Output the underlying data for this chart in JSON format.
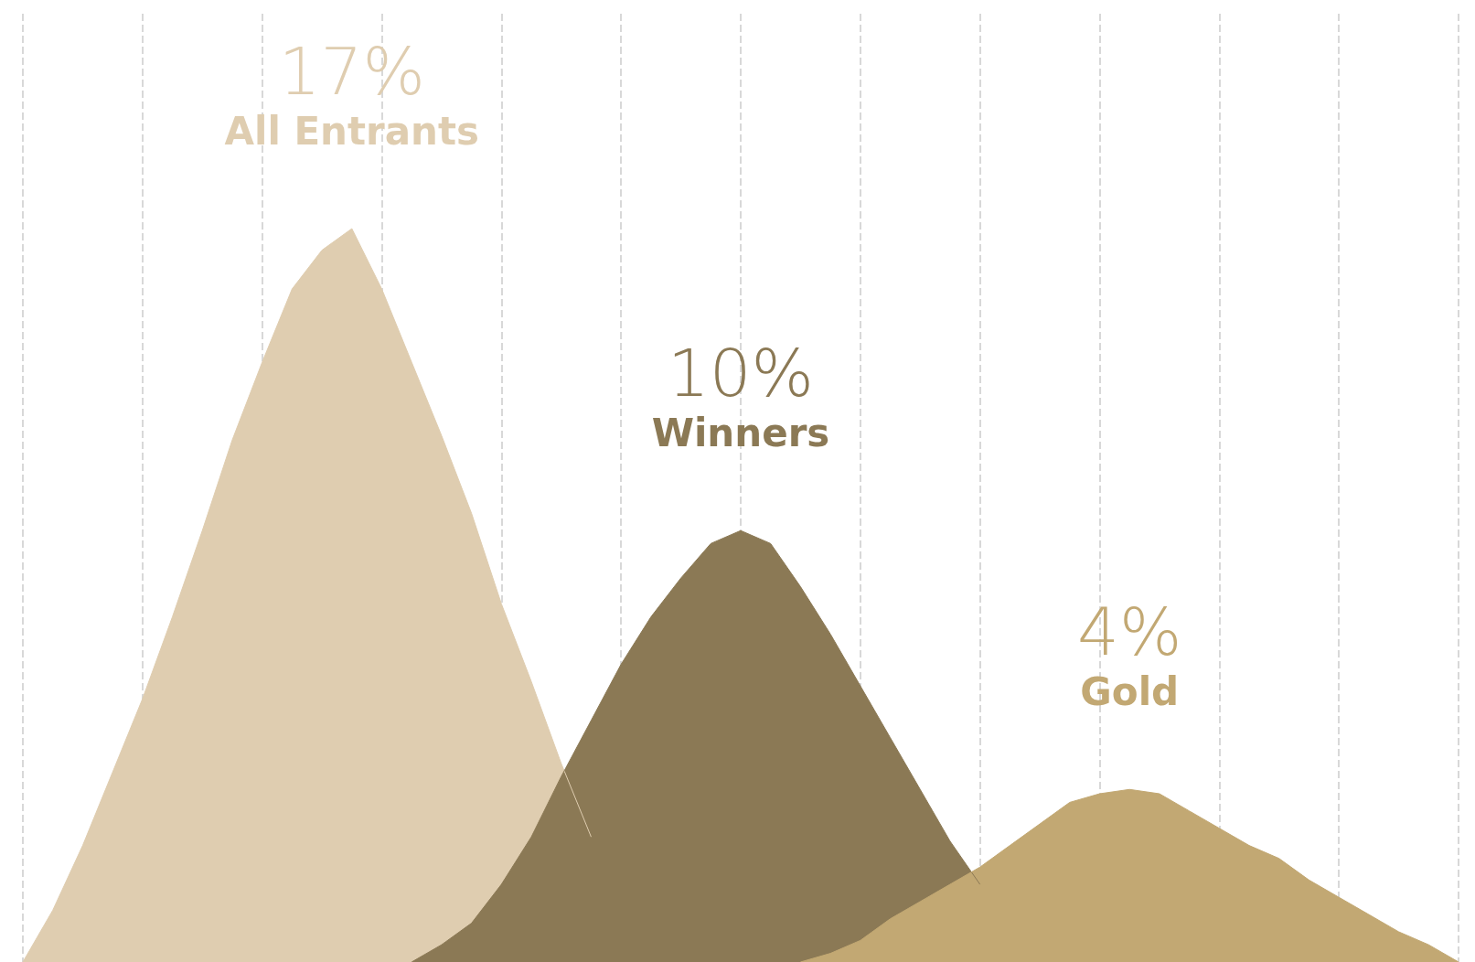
{
  "chart_data": {
    "type": "area",
    "legend": false,
    "grid": "x",
    "tick_labels": false,
    "marker": "none",
    "categories": [
      null,
      null,
      null,
      null,
      null,
      null,
      null,
      null,
      null,
      null,
      null,
      null,
      null,
      null,
      null,
      null,
      null,
      null,
      null,
      null,
      null,
      null,
      null,
      null,
      null,
      null,
      null,
      null,
      null,
      null,
      null,
      null,
      null,
      null,
      null,
      null,
      null,
      null,
      null,
      null,
      null,
      null,
      null,
      null,
      null,
      null,
      null,
      null,
      null
    ],
    "series": [
      {
        "name": "All Entrants",
        "color": "#dfcdb0",
        "values": [
          0,
          1.2,
          2.7,
          4.4,
          6.1,
          8.0,
          10.0,
          12.1,
          13.9,
          15.6,
          16.5,
          17,
          15.6,
          13.9,
          12.2,
          10.4,
          8.3,
          6.5,
          4.6,
          2.9,
          null,
          null,
          null,
          null,
          null,
          null,
          null,
          null,
          null,
          null,
          null,
          null,
          null,
          null,
          null,
          null,
          null,
          null,
          null,
          null,
          null,
          null,
          null,
          null,
          null,
          null,
          null,
          null,
          null
        ],
        "value_labels": [
          null,
          null,
          null,
          null,
          null,
          null,
          null,
          null,
          null,
          null,
          null,
          "17%",
          null,
          null,
          null,
          null,
          null,
          null,
          null,
          null,
          null,
          null,
          null,
          null,
          null,
          null,
          null,
          null,
          null,
          null,
          null,
          null,
          null,
          null,
          null,
          null,
          null,
          null,
          null,
          null,
          null,
          null,
          null,
          null,
          null,
          null,
          null,
          null,
          null
        ]
      },
      {
        "name": "Winners",
        "color": "#8b7955",
        "values": [
          null,
          null,
          null,
          null,
          null,
          null,
          null,
          null,
          null,
          null,
          null,
          null,
          null,
          0,
          0.4,
          0.9,
          1.8,
          2.9,
          4.3,
          5.6,
          6.9,
          8.0,
          8.9,
          9.7,
          10,
          9.7,
          8.7,
          7.6,
          6.4,
          5.2,
          4.0,
          2.8,
          1.8,
          null,
          null,
          null,
          null,
          null,
          null,
          null,
          null,
          null,
          null,
          null,
          null,
          null,
          null,
          null,
          null
        ],
        "value_labels": [
          null,
          null,
          null,
          null,
          null,
          null,
          null,
          null,
          null,
          null,
          null,
          null,
          null,
          null,
          null,
          null,
          null,
          null,
          null,
          null,
          null,
          null,
          null,
          null,
          "10%",
          null,
          null,
          null,
          null,
          null,
          null,
          null,
          null,
          null,
          null,
          null,
          null,
          null,
          null,
          null,
          null,
          null,
          null,
          null,
          null,
          null,
          null,
          null,
          null
        ]
      },
      {
        "name": "Gold",
        "color": "#c2a873",
        "values": [
          null,
          null,
          null,
          null,
          null,
          null,
          null,
          null,
          null,
          null,
          null,
          null,
          null,
          null,
          null,
          null,
          null,
          null,
          null,
          null,
          null,
          null,
          null,
          null,
          null,
          null,
          0,
          0.2,
          0.5,
          1.0,
          1.4,
          1.8,
          2.2,
          2.7,
          3.2,
          3.7,
          3.9,
          4,
          3.9,
          3.5,
          3.1,
          2.7,
          2.4,
          1.9,
          1.5,
          1.1,
          0.7,
          0.4,
          0
        ],
        "value_labels": [
          null,
          null,
          null,
          null,
          null,
          null,
          null,
          null,
          null,
          null,
          null,
          null,
          null,
          null,
          null,
          null,
          null,
          null,
          null,
          null,
          null,
          null,
          null,
          null,
          null,
          null,
          null,
          null,
          null,
          null,
          null,
          null,
          null,
          null,
          null,
          null,
          null,
          "4%",
          null,
          null,
          null,
          null,
          null,
          null,
          null,
          null,
          null,
          null,
          null
        ]
      }
    ]
  }
}
